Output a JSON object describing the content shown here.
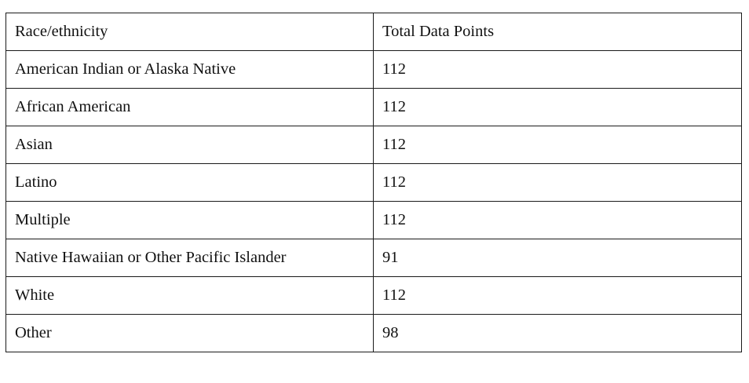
{
  "table": {
    "headers": [
      "Race/ethnicity",
      "Total Data Points"
    ],
    "rows": [
      [
        "American Indian or Alaska Native",
        "112"
      ],
      [
        "African American",
        "112"
      ],
      [
        "Asian",
        "112"
      ],
      [
        "Latino",
        "112"
      ],
      [
        "Multiple",
        "112"
      ],
      [
        "Native Hawaiian or Other Pacific Islander",
        "91"
      ],
      [
        "White",
        "112"
      ],
      [
        "Other",
        "98"
      ]
    ]
  }
}
